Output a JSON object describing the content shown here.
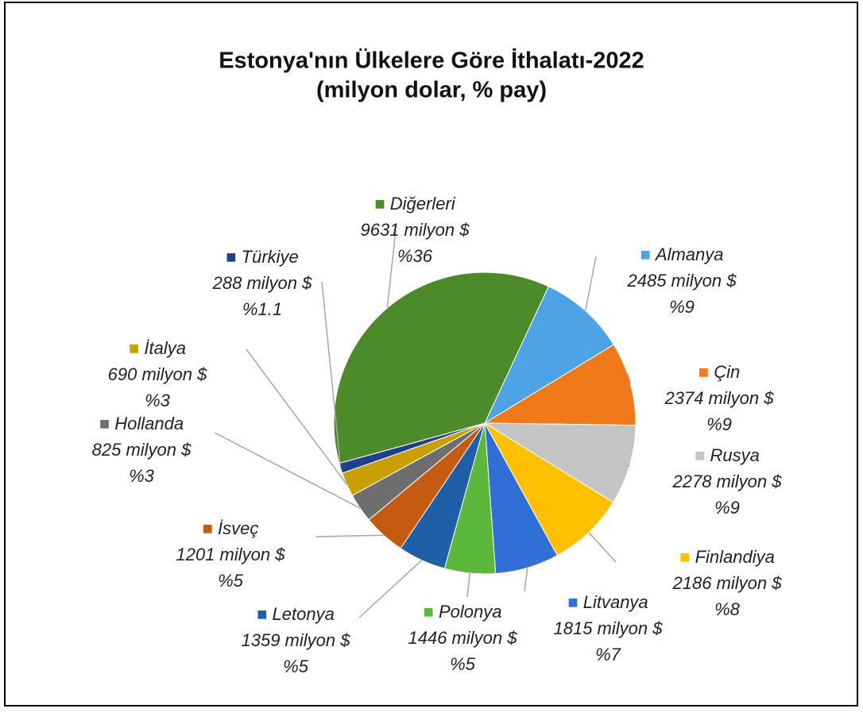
{
  "chart_data": {
    "type": "pie",
    "title": "Estonya'nın Ülkelere Göre İthalatı-2022",
    "subtitle": "(milyon dolar, % pay)",
    "start_angle": 25,
    "categories": [
      "Almanya",
      "Çin",
      "Rusya",
      "Finlandiya",
      "Litvanya",
      "Polonya",
      "Letonya",
      "İsveç",
      "Hollanda",
      "İtalya",
      "Türkiye",
      "Diğerleri"
    ],
    "values": [
      2485,
      2374,
      2278,
      2186,
      1815,
      1446,
      1359,
      1201,
      825,
      690,
      288,
      9631
    ],
    "value_labels": [
      "2485 milyon $",
      "2374 milyon $",
      "2278 milyon $",
      "2186 milyon $",
      "1815 milyon $",
      "1446 milyon $",
      "1359 milyon $",
      "1201 milyon $",
      "825 milyon $",
      "690 milyon $",
      "288 milyon $",
      "9631 milyon $"
    ],
    "percent_labels": [
      "%9",
      "%9",
      "%9",
      "%8",
      "%7",
      "%5",
      "%5",
      "%5",
      "%3",
      "%3",
      "%1.1",
      "%36"
    ],
    "colors": [
      "#4ea3e6",
      "#f07a1a",
      "#c4c4c4",
      "#ffc000",
      "#2f6fd6",
      "#5cb83a",
      "#1f5fa8",
      "#c55a11",
      "#6e6e6e",
      "#c9a000",
      "#1f3f8f",
      "#4c8a2a"
    ]
  }
}
